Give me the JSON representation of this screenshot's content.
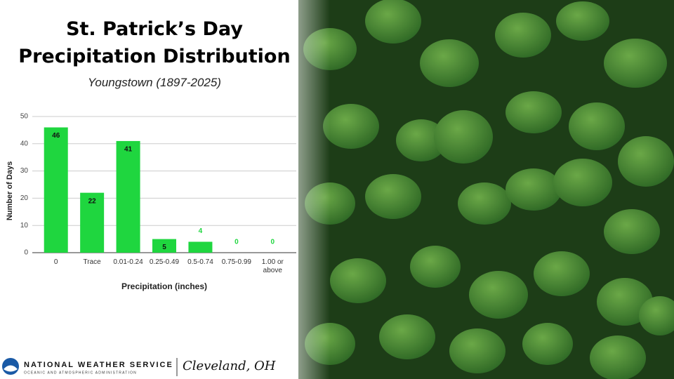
{
  "chart_data": {
    "type": "bar",
    "title": "St. Patrick’s Day Precipitation Distribution",
    "subtitle": "Youngstown (1897-2025)",
    "y_label": "Number of Days",
    "x_label": "Precipitation (inches)",
    "categories": [
      "0",
      "Trace",
      "0.01-0.24",
      "0.25-0.49",
      "0.5-0.74",
      "0.75-0.99",
      "1.00 or above"
    ],
    "values": [
      46,
      22,
      41,
      5,
      4,
      0,
      0
    ],
    "color": "#1fd63f",
    "ylim": [
      0,
      50
    ],
    "yticks": [
      0,
      10,
      20,
      30,
      40,
      50
    ],
    "grid": true
  },
  "footer": {
    "agency": "NATIONAL WEATHER SERVICE",
    "agency_sub": "OCEANIC AND ATMOSPHERIC ADMINISTRATION",
    "office": "Cleveland, OH"
  }
}
